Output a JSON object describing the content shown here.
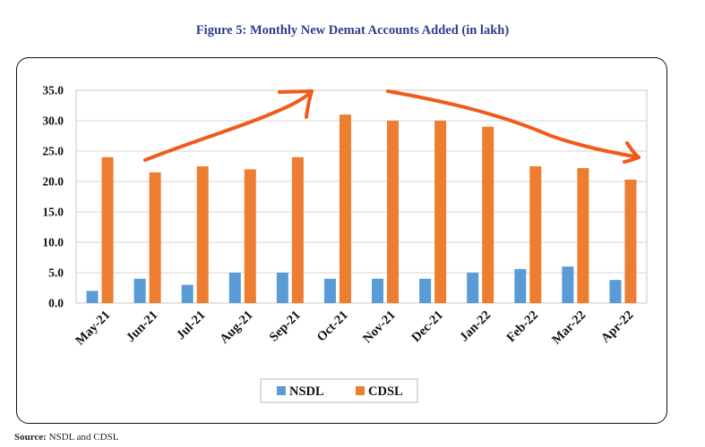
{
  "figure": {
    "title": "Figure 5: Monthly New Demat Accounts Added (in lakh)",
    "source_label": "Source:",
    "source_text": "NSDL and CDSL"
  },
  "chart_data": {
    "type": "bar",
    "title": "",
    "xlabel": "",
    "ylabel": "",
    "ylim": [
      0,
      35
    ],
    "yticks": [
      "0.0",
      "5.0",
      "10.0",
      "15.0",
      "20.0",
      "25.0",
      "30.0",
      "35.0"
    ],
    "categories": [
      "May-21",
      "Jun-21",
      "Jul-21",
      "Aug-21",
      "Sep-21",
      "Oct-21",
      "Nov-21",
      "Dec-21",
      "Jan-22",
      "Feb-22",
      "Mar-22",
      "Apr-22"
    ],
    "series": [
      {
        "name": "NSDL",
        "color": "#5B9BD5",
        "values": [
          2.0,
          4.0,
          3.0,
          5.0,
          5.0,
          4.0,
          4.0,
          4.0,
          5.0,
          5.6,
          6.0,
          3.8
        ]
      },
      {
        "name": "CDSL",
        "color": "#ED7D31",
        "values": [
          24.0,
          21.5,
          22.5,
          22.0,
          24.0,
          31.0,
          30.0,
          30.0,
          29.0,
          22.5,
          22.2,
          20.3
        ]
      }
    ],
    "grid": true,
    "legend": "bottom-center",
    "annotation_color": "#F05A1A"
  }
}
